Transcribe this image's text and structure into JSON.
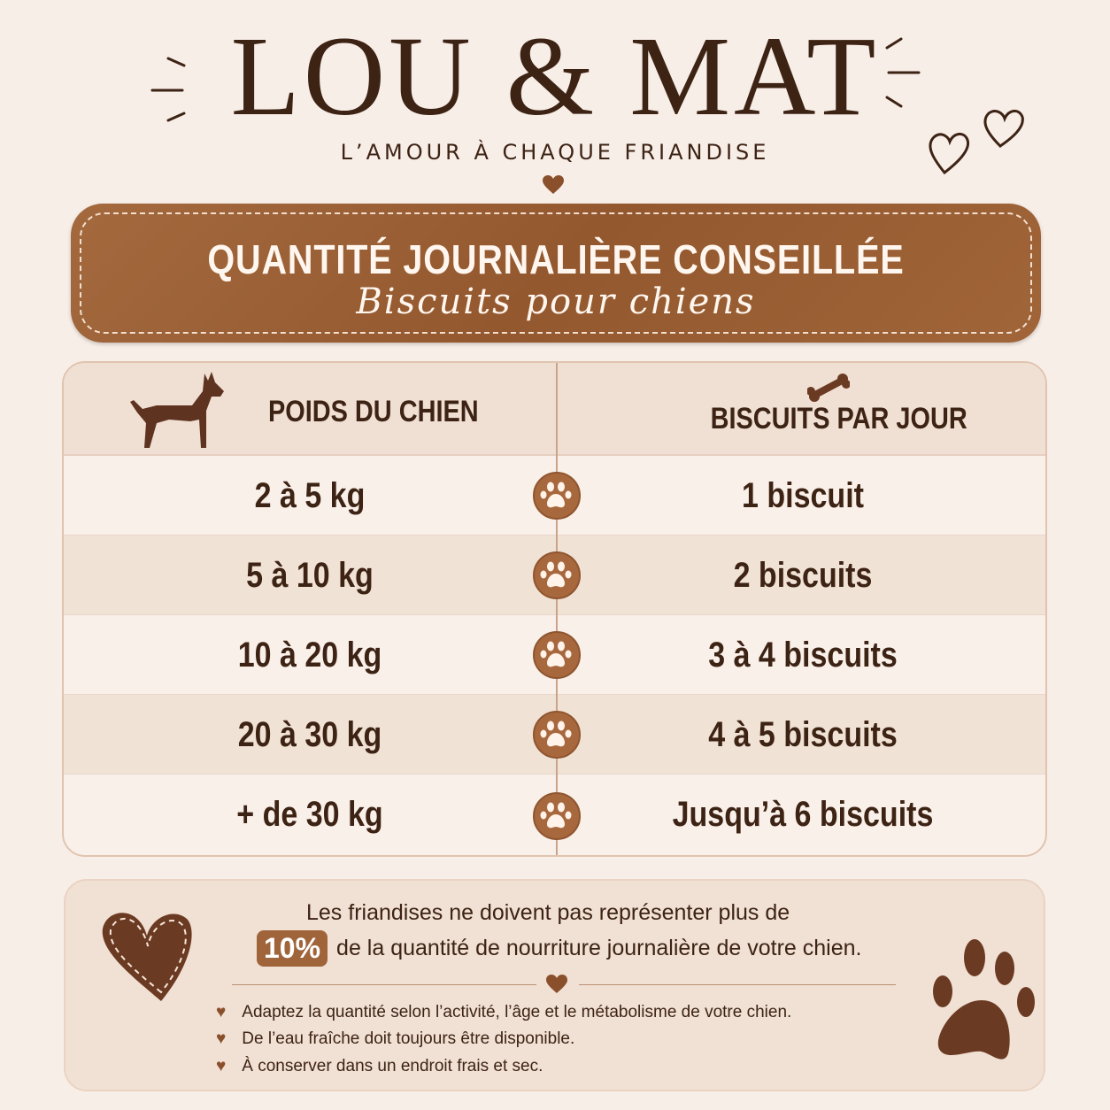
{
  "brand": {
    "name": "LOU & MAT",
    "tagline": "L’AMOUR À CHAQUE FRIANDISE"
  },
  "banner": {
    "title": "QUANTITÉ JOURNALIÈRE CONSEILLÉE",
    "subtitle": "Biscuits pour chiens"
  },
  "table": {
    "headers": [
      "POIDS DU CHIEN",
      "BISCUITS PAR JOUR"
    ],
    "rows": [
      {
        "weight": "2 à 5 kg",
        "biscuits": "1 biscuit"
      },
      {
        "weight": "5 à 10 kg",
        "biscuits": "2 biscuits"
      },
      {
        "weight": "10 à 20 kg",
        "biscuits": "3 à 4 biscuits"
      },
      {
        "weight": "20 à 30 kg",
        "biscuits": "4 à 5 biscuits"
      },
      {
        "weight": "+ de 30 kg",
        "biscuits": "Jusqu’à 6 biscuits"
      }
    ]
  },
  "note": {
    "line1": "Les friandises ne doivent pas représenter plus de",
    "percent": "10%",
    "line2": "de la quantité de nourriture journalière de votre chien.",
    "bullets": [
      "Adaptez la quantité selon l’activité, l’âge et le métabolisme de votre chien.",
      "De l’eau fraîche doit toujours être disponible.",
      "À conserver dans un endroit frais et sec."
    ]
  },
  "colors": {
    "brown": "#a0643a",
    "text": "#3d2314",
    "background": "#f8eee8"
  },
  "icons": [
    "heart-icon",
    "dog-icon",
    "bone-icon",
    "paw-icon"
  ]
}
